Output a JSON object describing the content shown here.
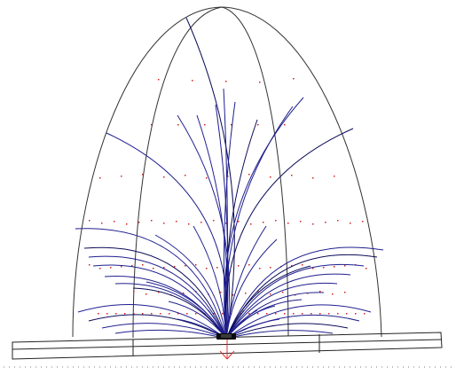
{
  "scene": {
    "description_labels": [],
    "colors": {
      "background": "#ffffff",
      "wireframe": "#333333",
      "field_lines": "#1f1f8f",
      "field_lines_dark": "#0b0b5a",
      "sample_points": "#d42020",
      "base_outline": "#222222",
      "force_arrow": "#e03030",
      "ground_dots": "#7a7a7a",
      "source": "#0a0a0a"
    },
    "icons": {
      "force_arrow": "down-arrow-icon",
      "source": "emitter-source-icon"
    }
  }
}
